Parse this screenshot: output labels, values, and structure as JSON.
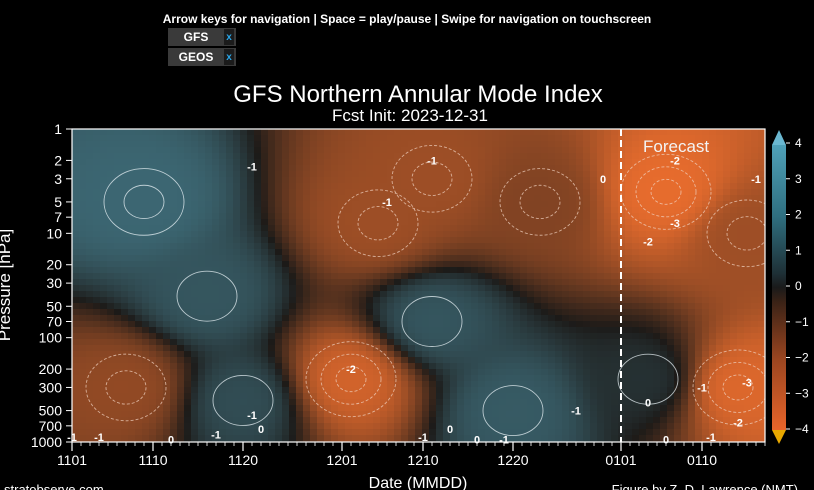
{
  "page": {
    "instructions": "Arrow keys for navigation | Space = play/pause | Swipe for navigation on touchscreen",
    "model_tabs": [
      {
        "label": "GFS",
        "close": "x"
      },
      {
        "label": "GEOS",
        "close": "x"
      }
    ]
  },
  "chart_data": {
    "type": "heatmap",
    "title": "GFS Northern Annular Mode Index",
    "subtitle": "Fcst Init: 2023-12-31",
    "xlabel": "Date (MMDD)",
    "ylabel": "Pressure [hPa]",
    "x_ticks": [
      {
        "label": "1101",
        "day": 0
      },
      {
        "label": "1110",
        "day": 9
      },
      {
        "label": "1120",
        "day": 19
      },
      {
        "label": "1201",
        "day": 30
      },
      {
        "label": "1210",
        "day": 39
      },
      {
        "label": "1220",
        "day": 49
      },
      {
        "label": "0101",
        "day": 61
      },
      {
        "label": "0110",
        "day": 70
      }
    ],
    "x_range_days": [
      0,
      77
    ],
    "y_ticks": [
      1,
      2,
      3,
      5,
      7,
      10,
      20,
      30,
      50,
      70,
      100,
      200,
      300,
      500,
      700,
      1000
    ],
    "y_range_hpa": [
      1,
      1000
    ],
    "colorbar": {
      "ticks": [
        "4",
        "3",
        "2",
        "1",
        "0",
        "−1",
        "−2",
        "−3",
        "−4"
      ],
      "range": [
        -4,
        4
      ],
      "extend_top_color": "#6ab7d0",
      "extend_bottom_color": "#e8a800"
    },
    "forecast_label": "Forecast",
    "forecast_start_day": 61,
    "contour_labels": [
      {
        "text": "-1",
        "day": 20,
        "hpa": 2.3
      },
      {
        "text": "-1",
        "day": 40,
        "hpa": 2.0
      },
      {
        "text": "-1",
        "day": 35,
        "hpa": 5.0
      },
      {
        "text": "0",
        "day": 59,
        "hpa": 3.0
      },
      {
        "text": "-2",
        "day": 67,
        "hpa": 2.0
      },
      {
        "text": "-1",
        "day": 76,
        "hpa": 3.0
      },
      {
        "text": "-3",
        "day": 67,
        "hpa": 8.0
      },
      {
        "text": "-2",
        "day": 64,
        "hpa": 12.0
      },
      {
        "text": "-2",
        "day": 31,
        "hpa": 200
      },
      {
        "text": "-1",
        "day": 20,
        "hpa": 550
      },
      {
        "text": "0",
        "day": 21,
        "hpa": 750
      },
      {
        "text": "-1",
        "day": 16,
        "hpa": 850
      },
      {
        "text": "-1",
        "day": 0,
        "hpa": 900
      },
      {
        "text": "-1",
        "day": 3,
        "hpa": 900
      },
      {
        "text": "0",
        "day": 11,
        "hpa": 950
      },
      {
        "text": "-1",
        "day": 39,
        "hpa": 900
      },
      {
        "text": "0",
        "day": 42,
        "hpa": 750
      },
      {
        "text": "0",
        "day": 45,
        "hpa": 950
      },
      {
        "text": "-1",
        "day": 48,
        "hpa": 950
      },
      {
        "text": "-1",
        "day": 56,
        "hpa": 500
      },
      {
        "text": "0",
        "day": 64,
        "hpa": 420
      },
      {
        "text": "-1",
        "day": 70,
        "hpa": 300
      },
      {
        "text": "0",
        "day": 66,
        "hpa": 950
      },
      {
        "text": "-3",
        "day": 75,
        "hpa": 270
      },
      {
        "text": "-2",
        "day": 74,
        "hpa": 650
      },
      {
        "text": "-1",
        "day": 71,
        "hpa": 900
      }
    ],
    "anomaly_field": [
      {
        "day": 8,
        "hpa": 5,
        "value": 1.6
      },
      {
        "day": 15,
        "hpa": 40,
        "value": 1.2
      },
      {
        "day": 19,
        "hpa": 400,
        "value": 1.0
      },
      {
        "day": 34,
        "hpa": 8,
        "value": -2.0
      },
      {
        "day": 40,
        "hpa": 3,
        "value": -2.0
      },
      {
        "day": 31,
        "hpa": 250,
        "value": -3.0
      },
      {
        "day": 6,
        "hpa": 300,
        "value": -1.8
      },
      {
        "day": 40,
        "hpa": 70,
        "value": 1.2
      },
      {
        "day": 49,
        "hpa": 500,
        "value": 1.3
      },
      {
        "day": 52,
        "hpa": 5,
        "value": -1.5
      },
      {
        "day": 66,
        "hpa": 4,
        "value": -3.4
      },
      {
        "day": 75,
        "hpa": 10,
        "value": -2.0
      },
      {
        "day": 74,
        "hpa": 300,
        "value": -3.2
      },
      {
        "day": 64,
        "hpa": 250,
        "value": 0.4
      }
    ],
    "footer_left": "stratobserve.com",
    "footer_right": "Figure by Z. D. Lawrence (NMT)"
  }
}
